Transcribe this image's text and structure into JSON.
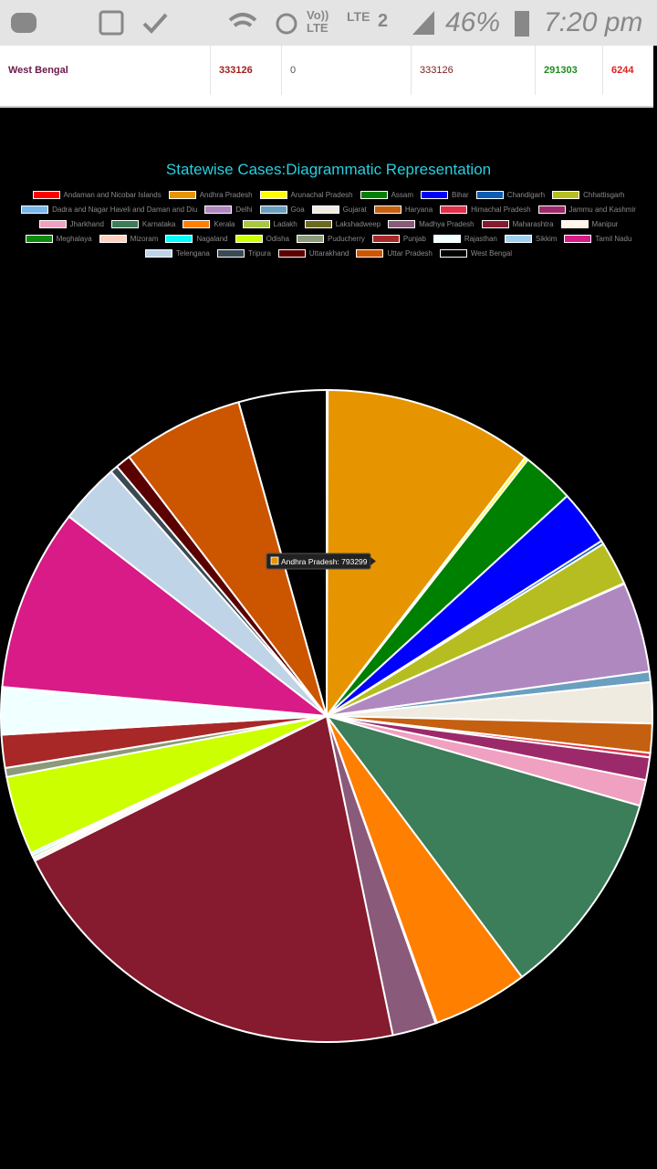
{
  "status_bar": {
    "volte": "Vo)) LTE",
    "network": "LTE",
    "sim": "2",
    "battery": "46%",
    "time": "7:20 pm"
  },
  "table": {
    "rows": [
      [
        "West Bengal",
        333126,
        0,
        333126,
        291303,
        6244
      ]
    ]
  },
  "chart_data": {
    "type": "pie",
    "title": "Statewise Cases:Diagrammatic Representation",
    "tooltip": "Andhra Pradesh: 793299",
    "categories": [
      "Andaman and Nicobar Islands",
      "Andhra Pradesh",
      "Arunachal Pradesh",
      "Assam",
      "Bihar",
      "Chandigarh",
      "Chhattisgarh",
      "Dadra and Nagar Haveli and Daman and Diu",
      "Delhi",
      "Goa",
      "Gujarat",
      "Haryana",
      "Himachal Pradesh",
      "Jammu and Kashmir",
      "Jharkhand",
      "Karnataka",
      "Kerala",
      "Ladakh",
      "Lakshadweep",
      "Madhya Pradesh",
      "Maharashtra",
      "Manipur",
      "Meghalaya",
      "Mizoram",
      "Nagaland",
      "Odisha",
      "Puducherry",
      "Punjab",
      "Rajasthan",
      "Sikkim",
      "Tamil Nadu",
      "Telengana",
      "Tripura",
      "Uttarakhand",
      "Uttar Pradesh",
      "West Bengal"
    ],
    "values": [
      4000,
      793299,
      13000,
      200000,
      211000,
      13000,
      166000,
      3000,
      341000,
      40000,
      155000,
      110000,
      17000,
      86000,
      98000,
      790000,
      362000,
      5000,
      0,
      166000,
      1600000,
      15000,
      8000,
      2000,
      8000,
      298000,
      34000,
      125000,
      176000,
      3000,
      692000,
      230000,
      29000,
      58000,
      460000,
      333126
    ],
    "colors": [
      "#ff0000",
      "#e69500",
      "#ffff00",
      "#008000",
      "#0000ff",
      "#0d5bb5",
      "#b5bd20",
      "#7ab8e8",
      "#b088c0",
      "#6a9fbf",
      "#efebe0",
      "#c46010",
      "#e0304a",
      "#9c2a6a",
      "#f0a0c0",
      "#3c7d5a",
      "#ff7f00",
      "#a8c840",
      "#6b6b20",
      "#8a5a7a",
      "#861a2e",
      "#fff5e8",
      "#0b8a0b",
      "#ffd0c0",
      "#00ffff",
      "#ccff00",
      "#8a9a7a",
      "#a82828",
      "#f0ffff",
      "#a0d0f0",
      "#d81b86",
      "#c0d4e8",
      "#3a4a54",
      "#5a0000",
      "#cc5500",
      "#000000"
    ]
  }
}
